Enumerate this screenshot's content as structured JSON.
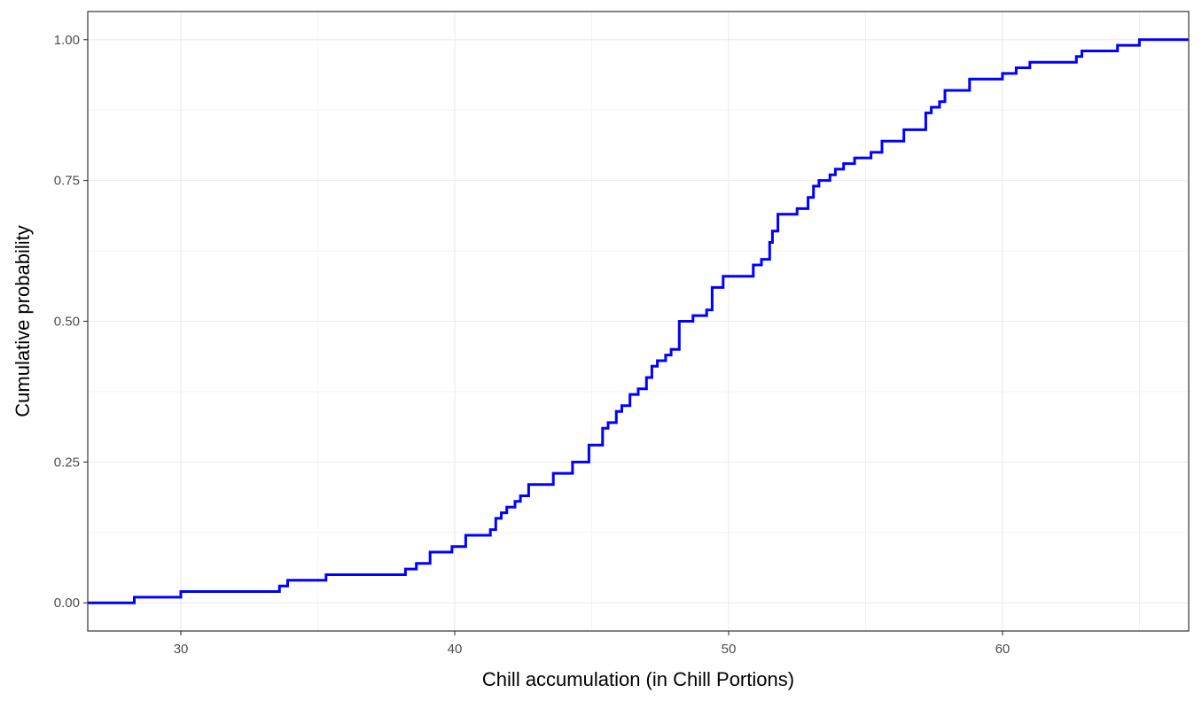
{
  "chart_data": {
    "type": "line",
    "title": "",
    "xlabel": "Chill accumulation (in Chill Portions)",
    "ylabel": "Cumulative probability",
    "xlim": [
      26.6,
      66.8
    ],
    "ylim": [
      -0.05,
      1.05
    ],
    "x_ticks": [
      30,
      40,
      50,
      60
    ],
    "x_tick_labels": [
      "30",
      "40",
      "50",
      "60"
    ],
    "y_ticks": [
      0,
      0.25,
      0.5,
      0.75,
      1
    ],
    "y_tick_labels": [
      "0.00",
      "0.25",
      "0.50",
      "0.75",
      "1.00"
    ],
    "grid": true,
    "line_color": "#0000ff",
    "series": [
      {
        "step": true,
        "x": [
          26.6,
          28.3,
          30.0,
          33.6,
          33.9,
          35.3,
          38.2,
          38.6,
          39.1,
          39.9,
          40.4,
          41.3,
          41.5,
          41.7,
          41.9,
          42.2,
          42.4,
          42.7,
          43.6,
          44.3,
          44.9,
          45.4,
          45.6,
          45.9,
          46.1,
          46.4,
          46.7,
          47.0,
          47.2,
          47.4,
          47.7,
          47.9,
          48.2,
          48.7,
          49.2,
          49.4,
          49.8,
          50.9,
          51.2,
          51.5,
          51.6,
          51.8,
          52.5,
          52.9,
          53.1,
          53.3,
          53.7,
          53.9,
          54.2,
          54.6,
          55.2,
          55.6,
          56.4,
          57.2,
          57.4,
          57.7,
          57.9,
          58.3,
          58.8,
          59.3,
          60.0,
          60.5,
          61.0,
          61.3,
          62.7,
          62.9,
          64.2,
          65.0,
          66.8
        ],
        "y": [
          0,
          0.01,
          0.02,
          0.03,
          0.04,
          0.05,
          0.06,
          0.07,
          0.09,
          0.1,
          0.12,
          0.13,
          0.15,
          0.16,
          0.17,
          0.18,
          0.19,
          0.21,
          0.23,
          0.25,
          0.28,
          0.31,
          0.32,
          0.34,
          0.35,
          0.37,
          0.38,
          0.4,
          0.42,
          0.43,
          0.44,
          0.45,
          0.5,
          0.51,
          0.52,
          0.56,
          0.58,
          0.6,
          0.61,
          0.64,
          0.66,
          0.69,
          0.7,
          0.72,
          0.74,
          0.75,
          0.76,
          0.77,
          0.78,
          0.79,
          0.8,
          0.82,
          0.84,
          0.87,
          0.88,
          0.89,
          0.91,
          0.91,
          0.93,
          0.93,
          0.94,
          0.95,
          0.96,
          0.96,
          0.97,
          0.98,
          0.99,
          1.0,
          1.0
        ]
      }
    ]
  }
}
